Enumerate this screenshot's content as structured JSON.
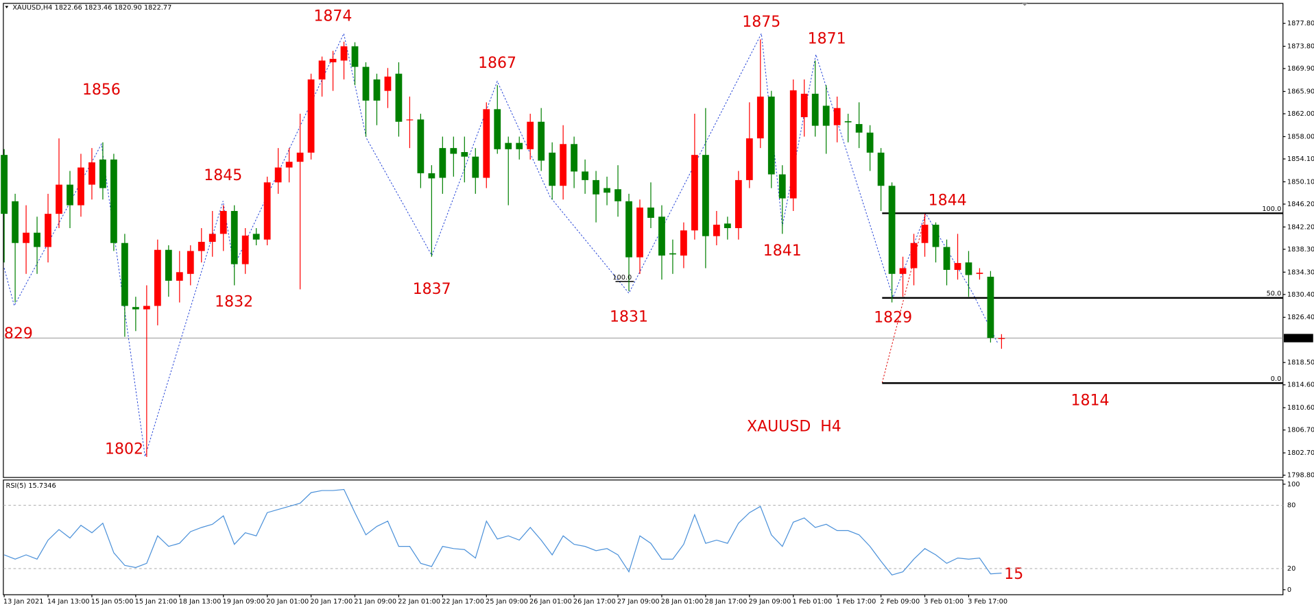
{
  "chart_data": {
    "type": "candlestick",
    "header": "XAUUSD,H4  1822.66 1823.46 1820.90 1822.77",
    "up_color": "#ff0000",
    "down_color": "#008000",
    "open": [
      1854.8,
      1846.7,
      1839.4,
      1841.2,
      1838.7,
      1844.5,
      1849.6,
      1846,
      1849.6,
      1854,
      1854,
      1839.4,
      1828.2,
      1827.8,
      1828.4,
      1838.2,
      1832.8,
      1834,
      1838,
      1839.6,
      1841,
      1845,
      1835.7,
      1841,
      1840,
      1850,
      1852.6,
      1853.6,
      1855.2,
      1868,
      1871,
      1871.3,
      1873.8,
      1870.2,
      1868,
      1866,
      1869,
      1861,
      1861,
      1851.6,
      1856,
      1856,
      1855.3,
      1854.5,
      1850.8,
      1862.8,
      1856.9,
      1856.9,
      1855.8,
      1860.6,
      1855.2,
      1849.4,
      1856.7,
      1851.9,
      1850.4,
      1849,
      1848.8,
      1846.7,
      1836.9,
      1845.6,
      1844,
      1837.6,
      1837.2,
      1841.6,
      1854.8,
      1840.6,
      1842.8,
      1842,
      1850.4,
      1857.7,
      1865,
      1851.4,
      1847.2,
      1861.4,
      1865.5,
      1863.4,
      1860,
      1860.7,
      1860.2,
      1858.7,
      1855.2,
      1849.4,
      1834,
      1835,
      1839.4,
      1842.6,
      1838.7,
      1834.7,
      1836,
      1834,
      1833.5,
      1822.66
    ],
    "high": [
      1855.8,
      1848,
      1846,
      1844,
      1848,
      1857.7,
      1852,
      1855,
      1856,
      1857,
      1855,
      1841,
      1830,
      1832,
      1840,
      1839,
      1838,
      1839,
      1842,
      1845,
      1846,
      1846,
      1842,
      1842,
      1851,
      1856,
      1856,
      1862,
      1869,
      1872,
      1873,
      1874.6,
      1874.5,
      1871,
      1869,
      1870,
      1871,
      1865,
      1862,
      1853,
      1858,
      1858,
      1858,
      1856,
      1864,
      1867,
      1858,
      1858,
      1862,
      1863,
      1857,
      1860,
      1858,
      1854,
      1852,
      1851,
      1853,
      1848,
      1847,
      1850,
      1846,
      1840,
      1843,
      1862,
      1863,
      1845,
      1844,
      1852,
      1864,
      1875,
      1866,
      1853,
      1868,
      1868,
      1871.3,
      1867,
      1865,
      1862,
      1864,
      1860,
      1856,
      1850,
      1837,
      1841,
      1844.5,
      1843,
      1840,
      1841,
      1838,
      1835,
      1834.5,
      1823.46
    ],
    "low": [
      1836,
      1829,
      1834,
      1834,
      1836,
      1842,
      1842,
      1844,
      1847,
      1847,
      1838,
      1823,
      1824,
      1802,
      1825,
      1830,
      1829,
      1832,
      1836,
      1837,
      1838,
      1832,
      1834,
      1839,
      1839,
      1848,
      1850,
      1831.3,
      1854,
      1865,
      1866,
      1868,
      1867,
      1858,
      1860,
      1863,
      1858,
      1856,
      1849,
      1837,
      1848,
      1851,
      1850,
      1848,
      1849,
      1855,
      1846,
      1854,
      1854,
      1852,
      1847,
      1847,
      1849,
      1848,
      1843,
      1846,
      1844,
      1831,
      1834,
      1842,
      1833,
      1834,
      1835,
      1840,
      1835,
      1839,
      1840,
      1840,
      1849,
      1856,
      1849,
      1841,
      1845,
      1858,
      1858,
      1855,
      1857,
      1857,
      1856,
      1852,
      1845,
      1829,
      1830,
      1832,
      1837,
      1836,
      1832,
      1833,
      1830,
      1833,
      1822,
      1820.9
    ],
    "close": [
      1844.5,
      1839.4,
      1841.2,
      1838.7,
      1844.5,
      1849.6,
      1846,
      1852.6,
      1853.5,
      1849,
      1839.4,
      1828.4,
      1827.8,
      1828.4,
      1838.2,
      1832.8,
      1834.3,
      1838,
      1839.6,
      1841,
      1845,
      1835.7,
      1840.7,
      1840,
      1850,
      1852.6,
      1853.6,
      1855.2,
      1868,
      1871.3,
      1871.6,
      1873.8,
      1870.2,
      1864.3,
      1864.3,
      1868.5,
      1860.6,
      1861,
      1851.6,
      1850.7,
      1850.8,
      1855,
      1854.5,
      1850.8,
      1862.8,
      1855.8,
      1855.8,
      1855.8,
      1860.6,
      1853.8,
      1849.4,
      1856.7,
      1851.9,
      1850.4,
      1847.9,
      1848.2,
      1846.7,
      1836.9,
      1845.6,
      1843.8,
      1837.2,
      1837.4,
      1841.6,
      1854.8,
      1840.6,
      1842.6,
      1842,
      1850.4,
      1857.7,
      1865,
      1851.4,
      1847.2,
      1866.1,
      1865.5,
      1859.9,
      1859.9,
      1863,
      1860.5,
      1858.7,
      1855.2,
      1849.4,
      1834,
      1835,
      1839.4,
      1842.6,
      1838.7,
      1834.7,
      1835.9,
      1833.8,
      1834.2,
      1822.8,
      1822.77
    ],
    "ylim": [
      1798.4,
      1881.3
    ],
    "yticks": [
      {
        "value": 1877.8,
        "label": "1877.80"
      },
      {
        "value": 1873.8,
        "label": "1873.80"
      },
      {
        "value": 1869.9,
        "label": "1869.90"
      },
      {
        "value": 1865.9,
        "label": "1865.90"
      },
      {
        "value": 1862,
        "label": "1862.00"
      },
      {
        "value": 1858,
        "label": "1858.00"
      },
      {
        "value": 1854.1,
        "label": "1854.10"
      },
      {
        "value": 1850.1,
        "label": "1850.10"
      },
      {
        "value": 1846.2,
        "label": "1846.20"
      },
      {
        "value": 1842.2,
        "label": "1842.20"
      },
      {
        "value": 1838.3,
        "label": "1838.30"
      },
      {
        "value": 1834.3,
        "label": "1834.30"
      },
      {
        "value": 1830.4,
        "label": "1830.40"
      },
      {
        "value": 1826.4,
        "label": "1826.40"
      },
      {
        "value": 1818.5,
        "label": "1818.50"
      },
      {
        "value": 1814.6,
        "label": "1814.60"
      },
      {
        "value": 1810.6,
        "label": "1810.60"
      },
      {
        "value": 1806.7,
        "label": "1806.70"
      },
      {
        "value": 1802.7,
        "label": "1802.70"
      },
      {
        "value": 1798.8,
        "label": "1798.80"
      }
    ],
    "current_price": {
      "value": 1822.77,
      "label": "1822.77"
    },
    "xtick_labels": [
      "13 Jan 2021",
      "14 Jan 13:00",
      "15 Jan 05:00",
      "15 Jan 21:00",
      "18 Jan 13:00",
      "19 Jan 09:00",
      "20 Jan 01:00",
      "20 Jan 17:00",
      "21 Jan 09:00",
      "22 Jan 01:00",
      "22 Jan 17:00",
      "25 Jan 09:00",
      "26 Jan 01:00",
      "26 Jan 17:00",
      "27 Jan 09:00",
      "28 Jan 01:00",
      "28 Jan 17:00",
      "29 Jan 09:00",
      "1 Feb 01:00",
      "1 Feb 17:00",
      "2 Feb 09:00",
      "3 Feb 01:00",
      "3 Feb 17:00"
    ],
    "fib_levels": [
      {
        "value": 1844.6,
        "label": "100.0"
      },
      {
        "value": 1829.8,
        "label": "50.0"
      },
      {
        "value": 1814.9,
        "label": "0.0"
      }
    ],
    "annotations": [
      "1856",
      "1874",
      "1867",
      "1875",
      "1871",
      "1845",
      "1844",
      "829",
      "1832",
      "1837",
      "1831",
      "1841",
      "1829",
      "1814",
      "1802",
      "XAUUSD  H4",
      "15",
      "100.0"
    ],
    "rsi": {
      "title": "RSI(5) 15.7346",
      "color": "#4a90d9",
      "ylim": [
        0,
        100
      ],
      "yticks": [
        100,
        80,
        20,
        0
      ],
      "values": [
        33,
        29,
        33,
        29,
        47,
        57,
        49,
        61,
        54,
        63,
        35,
        23,
        21,
        25,
        51,
        41,
        44,
        55,
        59,
        62,
        70,
        43,
        54,
        51,
        73,
        76,
        79,
        82,
        92,
        94,
        94,
        95,
        73,
        52,
        60,
        65,
        41,
        41,
        25,
        22,
        41,
        39,
        38,
        30,
        65,
        48,
        51,
        47,
        59,
        47,
        33,
        51,
        43,
        41,
        37,
        39,
        33,
        17,
        51,
        44,
        29,
        29,
        43,
        71,
        44,
        47,
        44,
        63,
        73,
        79,
        52,
        41,
        64,
        68,
        59,
        62,
        56,
        56,
        52,
        41,
        27,
        14,
        17,
        29,
        39,
        33,
        25,
        30,
        29,
        30,
        15,
        15.7
      ]
    }
  }
}
